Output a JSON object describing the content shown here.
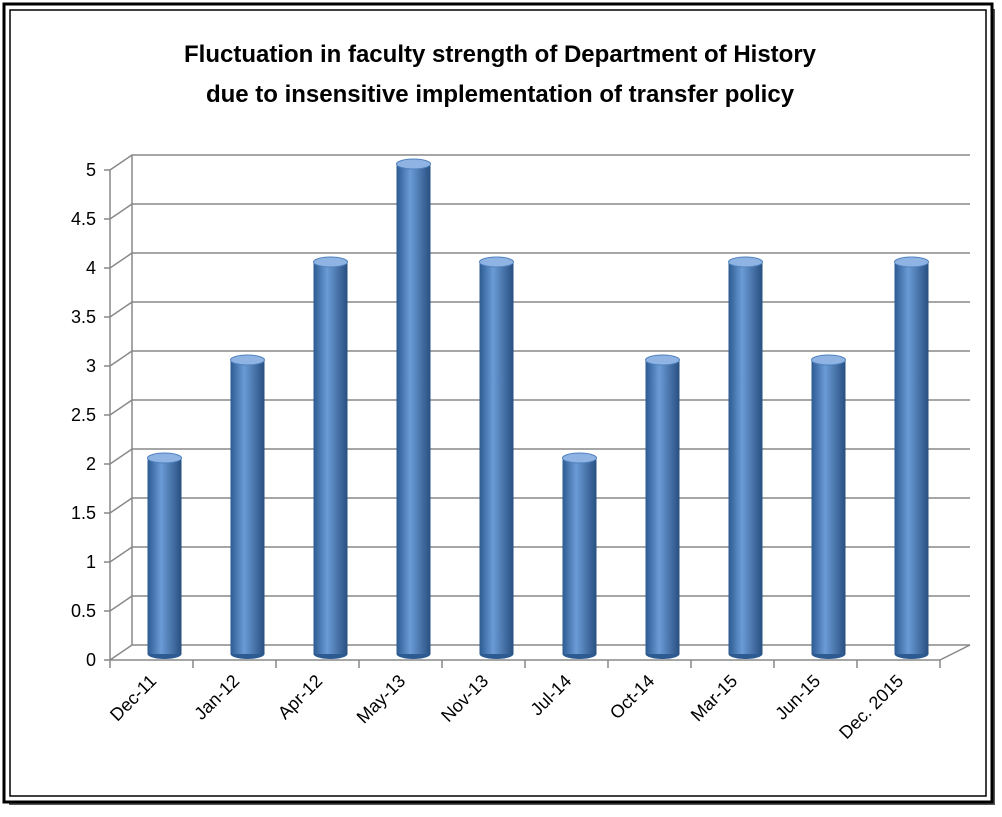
{
  "chart_data": {
    "type": "bar",
    "title": [
      "Fluctuation in faculty strength of Department of History",
      "due to insensitive implementation of transfer policy"
    ],
    "categories": [
      "Dec-11",
      "Jan-12",
      "Apr-12",
      "May-13",
      "Nov-13",
      "Jul-14",
      "Oct-14",
      "Mar-15",
      "Jun-15",
      "Dec. 2015"
    ],
    "values": [
      2,
      3,
      4,
      5,
      4,
      2,
      3,
      4,
      3,
      4
    ],
    "color": "#4f81bd",
    "ylim": [
      0,
      5
    ],
    "yticks": [
      0,
      0.5,
      1,
      1.5,
      2,
      2.5,
      3,
      3.5,
      4,
      4.5,
      5
    ],
    "grid": true
  }
}
